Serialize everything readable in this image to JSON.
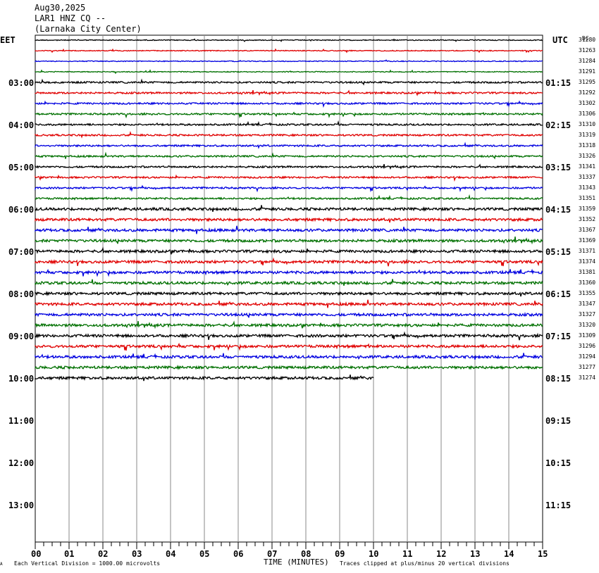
{
  "header": {
    "date": "Aug30,2025",
    "station": "LAR1 HNZ CQ --",
    "location": "(Larnaka City Center)"
  },
  "axis": {
    "left_zone": "EET",
    "right_zone": "UTC",
    "dc_label": "DC",
    "x_title": "TIME (MINUTES)",
    "scale_note": "Each Vertical Division = 1000.00 microvolts",
    "clip_note": "Traces clipped at plus/minus 20 vertical divisions",
    "corner_mark": "A"
  },
  "chart_data": {
    "type": "line",
    "title": "",
    "xlabel": "TIME (MINUTES)",
    "xlim": [
      0,
      15
    ],
    "x_ticks": [
      "00",
      "01",
      "02",
      "03",
      "04",
      "05",
      "06",
      "07",
      "08",
      "09",
      "10",
      "11",
      "12",
      "13",
      "14",
      "15"
    ],
    "left_hour_labels": [
      "03:00",
      "04:00",
      "05:00",
      "06:00",
      "07:00",
      "08:00",
      "09:00",
      "10:00",
      "11:00",
      "12:00",
      "13:00"
    ],
    "right_hour_labels": [
      "01:15",
      "02:15",
      "03:15",
      "04:15",
      "05:15",
      "06:15",
      "07:15",
      "08:15",
      "09:15",
      "10:15",
      "11:15"
    ],
    "trace_colors": [
      "#000000",
      "#e00000",
      "#0000e0",
      "#007000"
    ],
    "dc_offsets": [
      31280,
      31263,
      31284,
      31291,
      31295,
      31292,
      31302,
      31306,
      31310,
      31319,
      31318,
      31326,
      31341,
      31337,
      31343,
      31351,
      31359,
      31352,
      31367,
      31369,
      31371,
      31374,
      31381,
      31360,
      31355,
      31347,
      31327,
      31320,
      31309,
      31296,
      31294,
      31277,
      31274
    ],
    "last_trace_end_minutes": 10,
    "grid": "vertical lines each minute"
  }
}
